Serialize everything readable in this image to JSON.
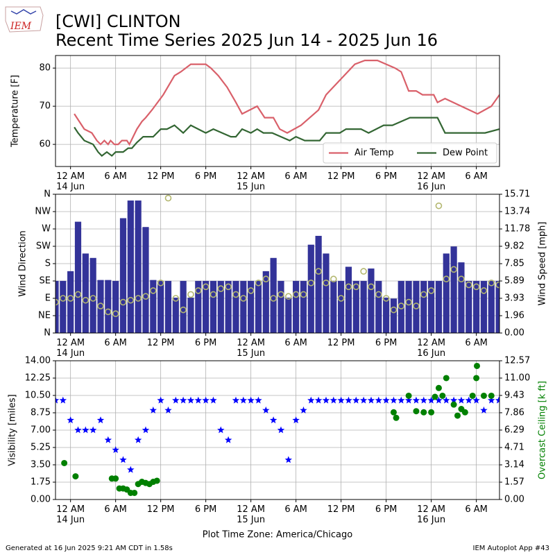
{
  "logo": "IEM",
  "title": "[CWI] CLINTON",
  "subtitle": "Recent Time Series 2025 Jun 14 - 2025 Jun 16",
  "xlabel": "Plot Time Zone: America/Chicago",
  "footer_left": "Generated at 16 Jun 2025 9:21 AM CDT in 1.58s",
  "footer_right": "IEM Autoplot App #43",
  "chart_data": [
    {
      "type": "line",
      "ylabel": "Temperature [F]",
      "xlim": [
        "2025-06-13 22:00",
        "2025-06-16 09:05"
      ],
      "xticks": [
        {
          "value": "2025-06-14 00:00",
          "label": "12 AM\n14 Jun"
        },
        {
          "value": "2025-06-14 06:00",
          "label": "6 AM"
        },
        {
          "value": "2025-06-14 12:00",
          "label": "12 PM"
        },
        {
          "value": "2025-06-14 18:00",
          "label": "6 PM"
        },
        {
          "value": "2025-06-15 00:00",
          "label": "12 AM\n15 Jun"
        },
        {
          "value": "2025-06-15 06:00",
          "label": "6 AM"
        },
        {
          "value": "2025-06-15 12:00",
          "label": "12 PM"
        },
        {
          "value": "2025-06-15 18:00",
          "label": "6 PM"
        },
        {
          "value": "2025-06-16 00:00",
          "label": "12 AM\n16 Jun"
        },
        {
          "value": "2025-06-16 06:00",
          "label": "6 AM"
        }
      ],
      "ylim": [
        54.2,
        83.3
      ],
      "yticks": [
        60,
        70,
        80
      ],
      "grid": true,
      "legend": "lower right",
      "series": [
        {
          "name": "Air Temp",
          "color": "#d9606a",
          "x": [
            "2025-06-14 00:30",
            "2025-06-14 01:10",
            "2025-06-14 01:50",
            "2025-06-14 02:50",
            "2025-06-14 03:30",
            "2025-06-14 04:00",
            "2025-06-14 04:30",
            "2025-06-14 05:00",
            "2025-06-14 05:20",
            "2025-06-14 05:50",
            "2025-06-14 06:20",
            "2025-06-14 06:50",
            "2025-06-14 07:30",
            "2025-06-14 07:50",
            "2025-06-14 08:20",
            "2025-06-14 08:50",
            "2025-06-14 09:30",
            "2025-06-14 10:00",
            "2025-06-14 10:50",
            "2025-06-14 12:20",
            "2025-06-14 13:50",
            "2025-06-14 14:40",
            "2025-06-14 16:00",
            "2025-06-14 18:00",
            "2025-06-14 18:40",
            "2025-06-14 19:40",
            "2025-06-14 20:50",
            "2025-06-14 22:00",
            "2025-06-14 22:50",
            "2025-06-15 00:50",
            "2025-06-15 01:50",
            "2025-06-15 03:00",
            "2025-06-15 03:50",
            "2025-06-15 04:50",
            "2025-06-15 06:40",
            "2025-06-15 09:00",
            "2025-06-15 10:00",
            "2025-06-15 13:50",
            "2025-06-15 15:10",
            "2025-06-15 16:50",
            "2025-06-15 19:10",
            "2025-06-15 20:00",
            "2025-06-15 21:00",
            "2025-06-15 22:00",
            "2025-06-15 22:50",
            "2025-06-16 00:20",
            "2025-06-16 00:50",
            "2025-06-16 01:50",
            "2025-06-16 06:10",
            "2025-06-16 08:00",
            "2025-06-16 09:05"
          ],
          "values": [
            68,
            66,
            64,
            63,
            61,
            60,
            61,
            60,
            61,
            60,
            60,
            61,
            61,
            60,
            62,
            64,
            66,
            67,
            69,
            73,
            78,
            79,
            81,
            81,
            80,
            78,
            75,
            71,
            68,
            70,
            67,
            67,
            64,
            63,
            65,
            69,
            73,
            81,
            82,
            82,
            80,
            79,
            74,
            74,
            73,
            73,
            71,
            72,
            68,
            70,
            73
          ]
        },
        {
          "name": "Dew Point",
          "color": "#336633",
          "x": [
            "2025-06-14 00:30",
            "2025-06-14 01:00",
            "2025-06-14 01:50",
            "2025-06-14 03:00",
            "2025-06-14 03:40",
            "2025-06-14 04:10",
            "2025-06-14 04:50",
            "2025-06-14 05:30",
            "2025-06-14 06:00",
            "2025-06-14 07:00",
            "2025-06-14 07:40",
            "2025-06-14 08:10",
            "2025-06-14 08:50",
            "2025-06-14 09:40",
            "2025-06-14 11:00",
            "2025-06-14 12:00",
            "2025-06-14 12:50",
            "2025-06-14 13:50",
            "2025-06-14 15:00",
            "2025-06-14 16:00",
            "2025-06-14 18:00",
            "2025-06-14 19:00",
            "2025-06-14 21:20",
            "2025-06-14 22:00",
            "2025-06-14 22:50",
            "2025-06-15 00:00",
            "2025-06-15 00:50",
            "2025-06-15 01:40",
            "2025-06-15 02:50",
            "2025-06-15 05:10",
            "2025-06-15 06:00",
            "2025-06-15 07:10",
            "2025-06-15 09:10",
            "2025-06-15 10:00",
            "2025-06-15 11:50",
            "2025-06-15 12:40",
            "2025-06-15 14:40",
            "2025-06-15 15:40",
            "2025-06-15 17:40",
            "2025-06-15 18:50",
            "2025-06-15 21:10",
            "2025-06-16 00:50",
            "2025-06-16 01:50",
            "2025-06-16 07:10",
            "2025-06-16 09:05"
          ],
          "values": [
            64.5,
            63,
            61,
            60,
            58,
            57,
            58,
            57,
            58,
            58,
            59,
            59,
            60.5,
            62,
            62,
            64,
            64,
            65,
            63,
            65,
            63,
            64,
            62,
            62,
            64,
            63,
            64,
            63,
            63,
            61,
            62,
            61,
            61,
            63,
            63,
            64,
            64,
            63,
            65,
            65,
            67,
            67,
            63,
            63,
            64
          ]
        }
      ]
    },
    {
      "type": "bar",
      "ylabel": "Wind Direction",
      "y2label": "Wind Speed [mph]",
      "xlim": [
        "2025-06-13 22:00",
        "2025-06-16 09:05"
      ],
      "xticks": [
        {
          "value": "2025-06-14 00:00",
          "label": "12 AM\n14 Jun"
        },
        {
          "value": "2025-06-14 06:00",
          "label": "6 AM"
        },
        {
          "value": "2025-06-14 12:00",
          "label": "12 PM"
        },
        {
          "value": "2025-06-14 18:00",
          "label": "6 PM"
        },
        {
          "value": "2025-06-15 00:00",
          "label": "12 AM\n15 Jun"
        },
        {
          "value": "2025-06-15 06:00",
          "label": "6 AM"
        },
        {
          "value": "2025-06-15 12:00",
          "label": "12 PM"
        },
        {
          "value": "2025-06-15 18:00",
          "label": "6 PM"
        },
        {
          "value": "2025-06-16 00:00",
          "label": "12 AM\n16 Jun"
        },
        {
          "value": "2025-06-16 06:00",
          "label": "6 AM"
        }
      ],
      "ylim": [
        0,
        360
      ],
      "yticks": [
        {
          "value": 0,
          "label": "N"
        },
        {
          "value": 45,
          "label": "NE"
        },
        {
          "value": 90,
          "label": "E"
        },
        {
          "value": 135,
          "label": "SE"
        },
        {
          "value": 180,
          "label": "S"
        },
        {
          "value": 225,
          "label": "SW"
        },
        {
          "value": 270,
          "label": "W"
        },
        {
          "value": 315,
          "label": "NW"
        },
        {
          "value": 360,
          "label": "N"
        }
      ],
      "y2lim": [
        0,
        15.71
      ],
      "y2ticks": [
        {
          "value": 0,
          "label": "0.00"
        },
        1.96,
        3.93,
        5.89,
        7.85,
        9.82,
        11.78,
        13.74,
        15.71
      ],
      "grid": true,
      "x": [
        "2025-06-13 22:00",
        "2025-06-13 23:00",
        "2025-06-14 00:00",
        "2025-06-14 01:00",
        "2025-06-14 02:00",
        "2025-06-14 03:00",
        "2025-06-14 04:00",
        "2025-06-14 05:00",
        "2025-06-14 06:00",
        "2025-06-14 07:00",
        "2025-06-14 08:00",
        "2025-06-14 09:00",
        "2025-06-14 10:00",
        "2025-06-14 11:00",
        "2025-06-14 12:00",
        "2025-06-14 13:00",
        "2025-06-14 14:00",
        "2025-06-14 15:00",
        "2025-06-14 16:00",
        "2025-06-14 17:00",
        "2025-06-14 18:00",
        "2025-06-14 19:00",
        "2025-06-14 20:00",
        "2025-06-14 21:00",
        "2025-06-14 22:00",
        "2025-06-14 23:00",
        "2025-06-15 00:00",
        "2025-06-15 01:00",
        "2025-06-15 02:00",
        "2025-06-15 03:00",
        "2025-06-15 04:00",
        "2025-06-15 05:00",
        "2025-06-15 06:00",
        "2025-06-15 07:00",
        "2025-06-15 08:00",
        "2025-06-15 09:00",
        "2025-06-15 10:00",
        "2025-06-15 11:00",
        "2025-06-15 12:00",
        "2025-06-15 13:00",
        "2025-06-15 14:00",
        "2025-06-15 15:00",
        "2025-06-15 16:00",
        "2025-06-15 17:00",
        "2025-06-15 18:00",
        "2025-06-15 19:00",
        "2025-06-15 20:00",
        "2025-06-15 21:00",
        "2025-06-15 22:00",
        "2025-06-15 23:00",
        "2025-06-16 00:00",
        "2025-06-16 01:00",
        "2025-06-16 02:00",
        "2025-06-16 03:00",
        "2025-06-16 04:00",
        "2025-06-16 05:00",
        "2025-06-16 06:00",
        "2025-06-16 07:00",
        "2025-06-16 08:00",
        "2025-06-16 09:00"
      ],
      "series": [
        {
          "type": "bar",
          "axis": "y2",
          "color": "#333399",
          "values": [
            5.9,
            5.9,
            7,
            12.6,
            9,
            8.5,
            6,
            6,
            5.9,
            13,
            15,
            15,
            12,
            6,
            5.9,
            5.9,
            4,
            5.9,
            4,
            5.9,
            5.9,
            5.9,
            5.9,
            5.9,
            5.9,
            5.9,
            5.9,
            5.9,
            7,
            8.5,
            5.9,
            4,
            5.9,
            5.9,
            10,
            11,
            9,
            5.9,
            5.9,
            7.5,
            5.9,
            5.9,
            7.3,
            5.9,
            4,
            3.9,
            5.9,
            5.9,
            5.9,
            5.9,
            5.9,
            5.9,
            9,
            9.8,
            8,
            5.9,
            5.9,
            5.9,
            5.9,
            5.9
          ]
        },
        {
          "type": "scatter",
          "marker": "open-circle",
          "color": "#b3b76f",
          "values": [
            80,
            90,
            90,
            100,
            85,
            90,
            70,
            55,
            50,
            80,
            85,
            90,
            95,
            110,
            130,
            350,
            90,
            60,
            100,
            110,
            120,
            100,
            115,
            120,
            100,
            90,
            110,
            130,
            140,
            90,
            100,
            95,
            100,
            100,
            130,
            160,
            130,
            140,
            90,
            120,
            120,
            160,
            120,
            100,
            90,
            60,
            70,
            80,
            70,
            100,
            110,
            330,
            140,
            165,
            140,
            125,
            120,
            110,
            130,
            125
          ]
        }
      ]
    },
    {
      "type": "scatter",
      "ylabel": "Visibility [miles]",
      "y2label": "Overcast Ceiling [k ft]",
      "y2color": "#008000",
      "xlim": [
        "2025-06-13 22:00",
        "2025-06-16 09:05"
      ],
      "xticks": [
        {
          "value": "2025-06-14 00:00",
          "label": "12 AM\n14 Jun"
        },
        {
          "value": "2025-06-14 06:00",
          "label": "6 AM"
        },
        {
          "value": "2025-06-14 12:00",
          "label": "12 PM"
        },
        {
          "value": "2025-06-14 18:00",
          "label": "6 PM"
        },
        {
          "value": "2025-06-15 00:00",
          "label": "12 AM\n15 Jun"
        },
        {
          "value": "2025-06-15 06:00",
          "label": "6 AM"
        },
        {
          "value": "2025-06-15 12:00",
          "label": "12 PM"
        },
        {
          "value": "2025-06-15 18:00",
          "label": "6 PM"
        },
        {
          "value": "2025-06-16 00:00",
          "label": "12 AM\n16 Jun"
        },
        {
          "value": "2025-06-16 06:00",
          "label": "6 AM"
        }
      ],
      "ylim": [
        0,
        14
      ],
      "yticks": [
        {
          "value": 0,
          "label": "0.00"
        },
        1.75,
        {
          "value": 3.5,
          "label": "3.50"
        },
        5.25,
        {
          "value": 7,
          "label": "7.00"
        },
        8.75,
        {
          "value": 10.5,
          "label": "10.50"
        },
        12.25,
        {
          "value": 14,
          "label": "14.00"
        }
      ],
      "y2lim": [
        0,
        12.57
      ],
      "y2ticks": [
        {
          "value": 0,
          "label": "0.00"
        },
        1.57,
        3.14,
        4.71,
        6.29,
        7.86,
        9.43,
        {
          "value": 11,
          "label": "11.00"
        },
        12.57
      ],
      "grid": true,
      "x": [
        "2025-06-13 22:00",
        "2025-06-13 23:00",
        "2025-06-14 00:00",
        "2025-06-14 01:00",
        "2025-06-14 02:00",
        "2025-06-14 03:00",
        "2025-06-14 04:00",
        "2025-06-14 05:00",
        "2025-06-14 06:00",
        "2025-06-14 07:00",
        "2025-06-14 08:00",
        "2025-06-14 09:00",
        "2025-06-14 10:00",
        "2025-06-14 11:00",
        "2025-06-14 12:00",
        "2025-06-14 13:00",
        "2025-06-14 14:00",
        "2025-06-14 15:00",
        "2025-06-14 16:00",
        "2025-06-14 17:00",
        "2025-06-14 18:00",
        "2025-06-14 19:00",
        "2025-06-14 20:00",
        "2025-06-14 21:00",
        "2025-06-14 22:00",
        "2025-06-14 23:00",
        "2025-06-15 00:00",
        "2025-06-15 01:00",
        "2025-06-15 02:00",
        "2025-06-15 03:00",
        "2025-06-15 04:00",
        "2025-06-15 05:00",
        "2025-06-15 06:00",
        "2025-06-15 07:00",
        "2025-06-15 08:00",
        "2025-06-15 09:00",
        "2025-06-15 10:00",
        "2025-06-15 11:00",
        "2025-06-15 12:00",
        "2025-06-15 13:00",
        "2025-06-15 14:00",
        "2025-06-15 15:00",
        "2025-06-15 16:00",
        "2025-06-15 17:00",
        "2025-06-15 18:00",
        "2025-06-15 19:00",
        "2025-06-15 20:00",
        "2025-06-15 21:00",
        "2025-06-15 22:00",
        "2025-06-15 23:00",
        "2025-06-16 00:00",
        "2025-06-16 01:00",
        "2025-06-16 02:00",
        "2025-06-16 03:00",
        "2025-06-16 04:00",
        "2025-06-16 05:00",
        "2025-06-16 06:00",
        "2025-06-16 07:00",
        "2025-06-16 08:00",
        "2025-06-16 09:00"
      ],
      "series": [
        {
          "type": "scatter",
          "marker": "star",
          "color": "#0000ff",
          "values": [
            10,
            10,
            8,
            7,
            7,
            7,
            8,
            6,
            5,
            4,
            3,
            6,
            7,
            9,
            10,
            9,
            10,
            10,
            10,
            10,
            10,
            10,
            7,
            6,
            10,
            10,
            10,
            10,
            9,
            8,
            7,
            4,
            8,
            9,
            10,
            10,
            10,
            10,
            10,
            10,
            10,
            10,
            10,
            10,
            10,
            10,
            10,
            10,
            10,
            10,
            10,
            10,
            10,
            10,
            10,
            10,
            10,
            9,
            10,
            10
          ]
        },
        {
          "type": "scatter",
          "marker": "circle",
          "axis": "y2",
          "color": "#008000",
          "x": [
            "2025-06-13 23:10",
            "2025-06-14 00:40",
            "2025-06-14 05:30",
            "2025-06-14 06:00",
            "2025-06-14 06:30",
            "2025-06-14 07:00",
            "2025-06-14 07:30",
            "2025-06-14 08:00",
            "2025-06-14 08:30",
            "2025-06-14 09:00",
            "2025-06-14 09:30",
            "2025-06-14 10:00",
            "2025-06-14 10:30",
            "2025-06-14 11:00",
            "2025-06-14 11:30",
            "2025-06-15 19:00",
            "2025-06-15 19:20",
            "2025-06-15 21:00",
            "2025-06-15 22:00",
            "2025-06-15 23:00",
            "2025-06-16 00:00",
            "2025-06-16 00:30",
            "2025-06-16 01:00",
            "2025-06-16 01:30",
            "2025-06-16 02:00",
            "2025-06-16 03:00",
            "2025-06-16 03:30",
            "2025-06-16 04:00",
            "2025-06-16 04:30",
            "2025-06-16 05:30",
            "2025-06-16 06:00",
            "2025-06-16 06:05",
            "2025-06-16 07:00",
            "2025-06-16 08:00"
          ],
          "values": [
            3.3,
            2.1,
            1.9,
            1.9,
            1.0,
            1.0,
            0.9,
            0.6,
            0.6,
            1.4,
            1.6,
            1.5,
            1.4,
            1.6,
            1.7,
            7.9,
            7.4,
            9.4,
            8.0,
            7.9,
            7.9,
            9.3,
            10.1,
            9.4,
            11.0,
            8.6,
            7.6,
            8.2,
            7.9,
            9.4,
            11.0,
            12.1,
            9.4,
            9.4
          ]
        }
      ]
    }
  ]
}
